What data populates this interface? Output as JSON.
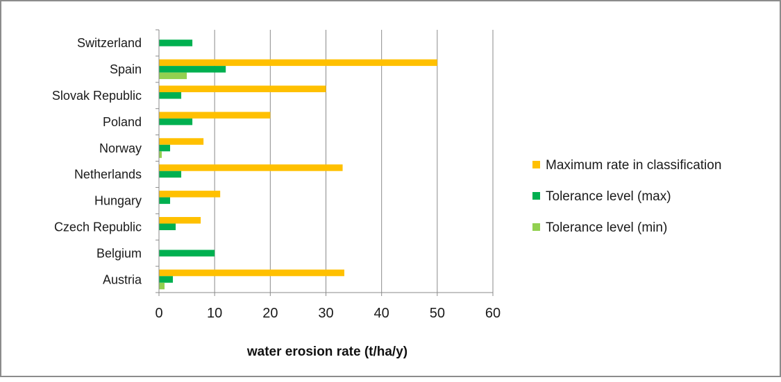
{
  "chart_data": {
    "type": "bar",
    "orientation": "horizontal",
    "categories": [
      "Switzerland",
      "Spain",
      "Slovak Republic",
      "Poland",
      "Norway",
      "Netherlands",
      "Hungary",
      "Czech Republic",
      "Belgium",
      "Austria"
    ],
    "series": [
      {
        "name": "Maximum rate in classification",
        "color": "#FFC000",
        "values": [
          null,
          50,
          30,
          20,
          8,
          33,
          11,
          7.5,
          null,
          33.3
        ]
      },
      {
        "name": "Tolerance level (max)",
        "color": "#00B050",
        "values": [
          6,
          12,
          4,
          6,
          2,
          4,
          2,
          3,
          10,
          2.5
        ]
      },
      {
        "name": "Tolerance level (min)",
        "color": "#92D050",
        "values": [
          null,
          5,
          null,
          null,
          0.5,
          null,
          null,
          null,
          null,
          1
        ]
      }
    ],
    "xlabel": "water erosion rate (t/ha/y)",
    "ylabel": "",
    "title": "",
    "xlim": [
      0,
      60
    ],
    "xticks": [
      0,
      10,
      20,
      30,
      40,
      50,
      60
    ],
    "grid": "vertical",
    "legend": "right"
  }
}
